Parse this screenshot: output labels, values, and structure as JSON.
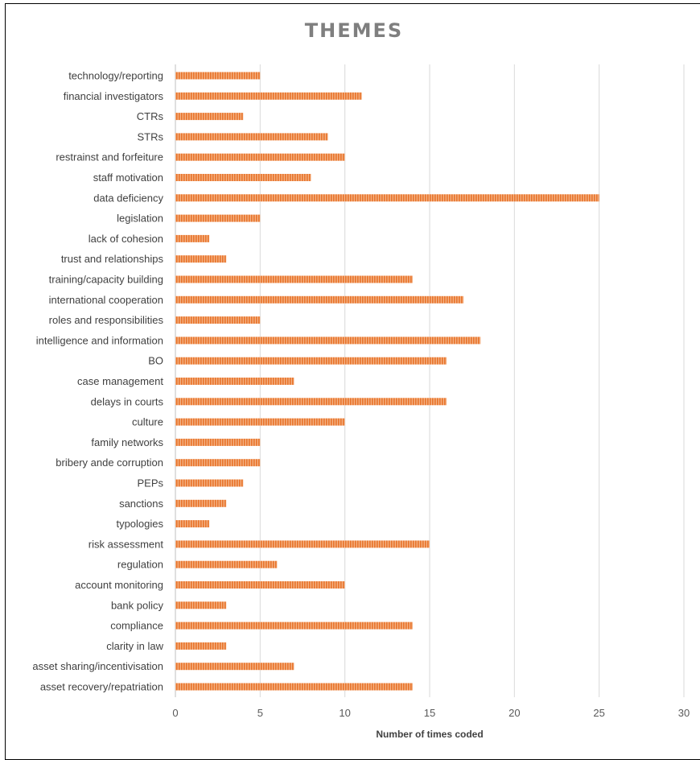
{
  "chart_data": {
    "type": "bar",
    "orientation": "horizontal",
    "title": "THEMES",
    "xlabel": "Number of times coded",
    "ylabel": "",
    "xlim": [
      0,
      30
    ],
    "x_ticks": [
      0,
      5,
      10,
      15,
      20,
      25,
      30
    ],
    "grid": "vertical",
    "bar_color": "#ED7D31",
    "categories": [
      "technology/reporting",
      "financial investigators",
      "CTRs",
      "STRs",
      "restrainst and forfeiture",
      "staff motivation",
      "data deficiency",
      "legislation",
      "lack of cohesion",
      "trust and relationships",
      "training/capacity building",
      "international cooperation",
      "roles and responsibilities",
      "intelligence and information",
      "BO",
      "case management",
      "delays in courts",
      "culture",
      "family networks",
      "bribery ande corruption",
      "PEPs",
      "sanctions",
      "typologies",
      "risk assessment",
      "regulation",
      "account monitoring",
      "bank policy",
      "compliance",
      "clarity in law",
      "asset sharing/incentivisation",
      "asset recovery/repatriation"
    ],
    "values": [
      5,
      11,
      4,
      9,
      10,
      8,
      25,
      5,
      2,
      3,
      14,
      17,
      5,
      18,
      16,
      7,
      16,
      10,
      5,
      5,
      4,
      3,
      2,
      15,
      6,
      10,
      3,
      14,
      3,
      7,
      14
    ]
  }
}
